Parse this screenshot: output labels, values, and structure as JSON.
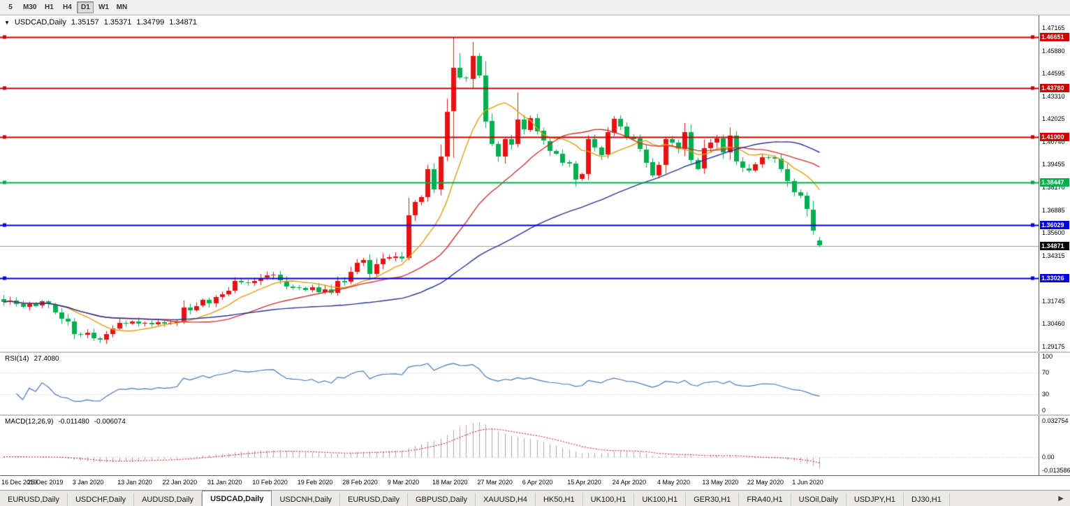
{
  "toolbar": {
    "timeframes": [
      "5",
      "M30",
      "H1",
      "H4",
      "D1",
      "W1",
      "MN"
    ],
    "active": "D1"
  },
  "title": {
    "dropdown_icon": "▼",
    "symbol_period": "USDCAD,Daily",
    "open": "1.35157",
    "high": "1.35371",
    "low": "1.34799",
    "close": "1.34871"
  },
  "rsi_header": {
    "label": "RSI(14)",
    "value": "27.4080"
  },
  "macd_header": {
    "label": "MACD(12,26,9)",
    "main": "-0.011480",
    "signal": "-0.006074"
  },
  "tabs": {
    "items": [
      "EURUSD,Daily",
      "USDCHF,Daily",
      "AUDUSD,Daily",
      "USDCAD,Daily",
      "USDCNH,Daily",
      "EURUSD,Daily",
      "GBPUSD,Daily",
      "XAUUSD,H4",
      "HK50,H1",
      "UK100,H1",
      "UK100,H1",
      "GER30,H1",
      "FRA40,H1",
      "USOil,Daily",
      "USDJPY,H1",
      "DJ30,H1"
    ],
    "active_index": 3,
    "scroll_right_icon": "▶"
  },
  "chart_data": {
    "type": "candlestick",
    "symbol": "USDCAD",
    "timeframe": "Daily",
    "last_candle": {
      "open": 1.35157,
      "high": 1.35371,
      "low": 1.34799,
      "close": 1.34871
    },
    "price_axis_ticks": [
      "1.47165",
      "1.45880",
      "1.44595",
      "1.43310",
      "1.42025",
      "1.40740",
      "1.39455",
      "1.38170",
      "1.36885",
      "1.35600",
      "1.34315",
      "1.33030",
      "1.31745",
      "1.30460",
      "1.29175"
    ],
    "price_range": [
      1.29175,
      1.47165
    ],
    "levels": [
      {
        "text": "1.46651",
        "value": 1.46651,
        "color": "#cc0000"
      },
      {
        "text": "1.43780",
        "value": 1.4378,
        "color": "#cc0000"
      },
      {
        "text": "1.41000",
        "value": 1.41,
        "color": "#cc0000"
      },
      {
        "text": "1.38447",
        "value": 1.38447,
        "color": "#00b04a"
      },
      {
        "text": "1.36029",
        "value": 1.36029,
        "color": "#0000dd"
      },
      {
        "text": "1.33026",
        "value": 1.33026,
        "color": "#0000dd"
      }
    ],
    "current_price": {
      "text": "1.34871",
      "value": 1.34871,
      "bg": "#000000",
      "line_color": "#9a9a9a"
    },
    "x_labels": [
      "16 Dec 2019",
      "25 Dec 2019",
      "3 Jan 2020",
      "13 Jan 2020",
      "22 Jan 2020",
      "31 Jan 2020",
      "10 Feb 2020",
      "19 Feb 2020",
      "28 Feb 2020",
      "9 Mar 2020",
      "18 Mar 2020",
      "27 Mar 2020",
      "6 Apr 2020",
      "15 Apr 2020",
      "24 Apr 2020",
      "4 May 2020",
      "13 May 2020",
      "22 May 2020",
      "1 Jun 2020"
    ],
    "label_every": 7,
    "closes": [
      1.317,
      1.3178,
      1.316,
      1.3145,
      1.316,
      1.315,
      1.3172,
      1.3155,
      1.311,
      1.3075,
      1.306,
      1.299,
      1.2985,
      1.2995,
      1.2965,
      1.2958,
      1.299,
      1.3022,
      1.3052,
      1.3048,
      1.3058,
      1.3045,
      1.305,
      1.3042,
      1.3055,
      1.3048,
      1.3052,
      1.306,
      1.314,
      1.3125,
      1.3148,
      1.318,
      1.3162,
      1.3198,
      1.3215,
      1.3235,
      1.329,
      1.3282,
      1.3278,
      1.3288,
      1.3305,
      1.3318,
      1.3322,
      1.329,
      1.3258,
      1.3252,
      1.3248,
      1.3238,
      1.3252,
      1.3225,
      1.3242,
      1.3222,
      1.3288,
      1.3282,
      1.3338,
      1.339,
      1.3405,
      1.3325,
      1.3382,
      1.3415,
      1.3422,
      1.3428,
      1.3418,
      1.366,
      1.3735,
      1.3762,
      1.392,
      1.3805,
      1.3992,
      1.4245,
      1.449,
      1.4435,
      1.443,
      1.456,
      1.445,
      1.419,
      1.406,
      1.399,
      1.409,
      1.4058,
      1.4198,
      1.4142,
      1.4208,
      1.4135,
      1.4078,
      1.4022,
      1.4008,
      1.3958,
      1.3952,
      1.3862,
      1.389,
      1.4088,
      1.4042,
      1.4,
      1.4128,
      1.4205,
      1.4162,
      1.4098,
      1.4092,
      1.4032,
      1.3958,
      1.3882,
      1.3942,
      1.4088,
      1.4068,
      1.4032,
      1.4128,
      1.3972,
      1.3922,
      1.4038,
      1.4068,
      1.4092,
      1.4012,
      1.4108,
      1.3962,
      1.3925,
      1.3912,
      1.3948,
      1.3988,
      1.3985,
      1.3978,
      1.3918,
      1.3852,
      1.3788,
      1.3768,
      1.3692,
      1.3572,
      1.34871
    ],
    "candle_overrides": {
      "0": {
        "o": 1.3185
      },
      "63": {
        "h": 1.3758,
        "l": 1.3405
      },
      "66": {
        "h": 1.3945
      },
      "70": {
        "h": 1.46651,
        "l": 1.3985
      },
      "71": {
        "h": 1.4575
      },
      "73": {
        "h": 1.4638
      },
      "75": {
        "l": 1.4152
      },
      "80": {
        "h": 1.4352
      },
      "91": {
        "l": 1.3858
      },
      "106": {
        "h": 1.418
      },
      "113": {
        "h": 1.4155
      },
      "126": {
        "l": 1.3548
      },
      "127": {
        "o": 1.35157,
        "h": 1.35371,
        "l": 1.34799
      }
    },
    "candle_colors": {
      "bull": "#e81212",
      "bear": "#00b050"
    },
    "moving_averages": [
      {
        "period": 10,
        "color": "#e0a010"
      },
      {
        "period": 25,
        "color": "#d03030"
      },
      {
        "period": 55,
        "color": "#283593"
      }
    ],
    "rsi": {
      "period": 14,
      "last_value": 27.408,
      "line_color": "#4878b8",
      "axis_labels": [
        "100",
        "70",
        "30",
        "0"
      ],
      "dotted_levels": [
        70,
        30
      ]
    },
    "macd": {
      "fast": 12,
      "slow": 26,
      "signal_period": 9,
      "last_main": -0.01148,
      "last_signal": -0.006074,
      "axis_labels": [
        "0.032754",
        "0.00",
        "-0.013586"
      ],
      "histogram_color": "#a8a8a8",
      "signal_color": "#cc2020"
    }
  }
}
